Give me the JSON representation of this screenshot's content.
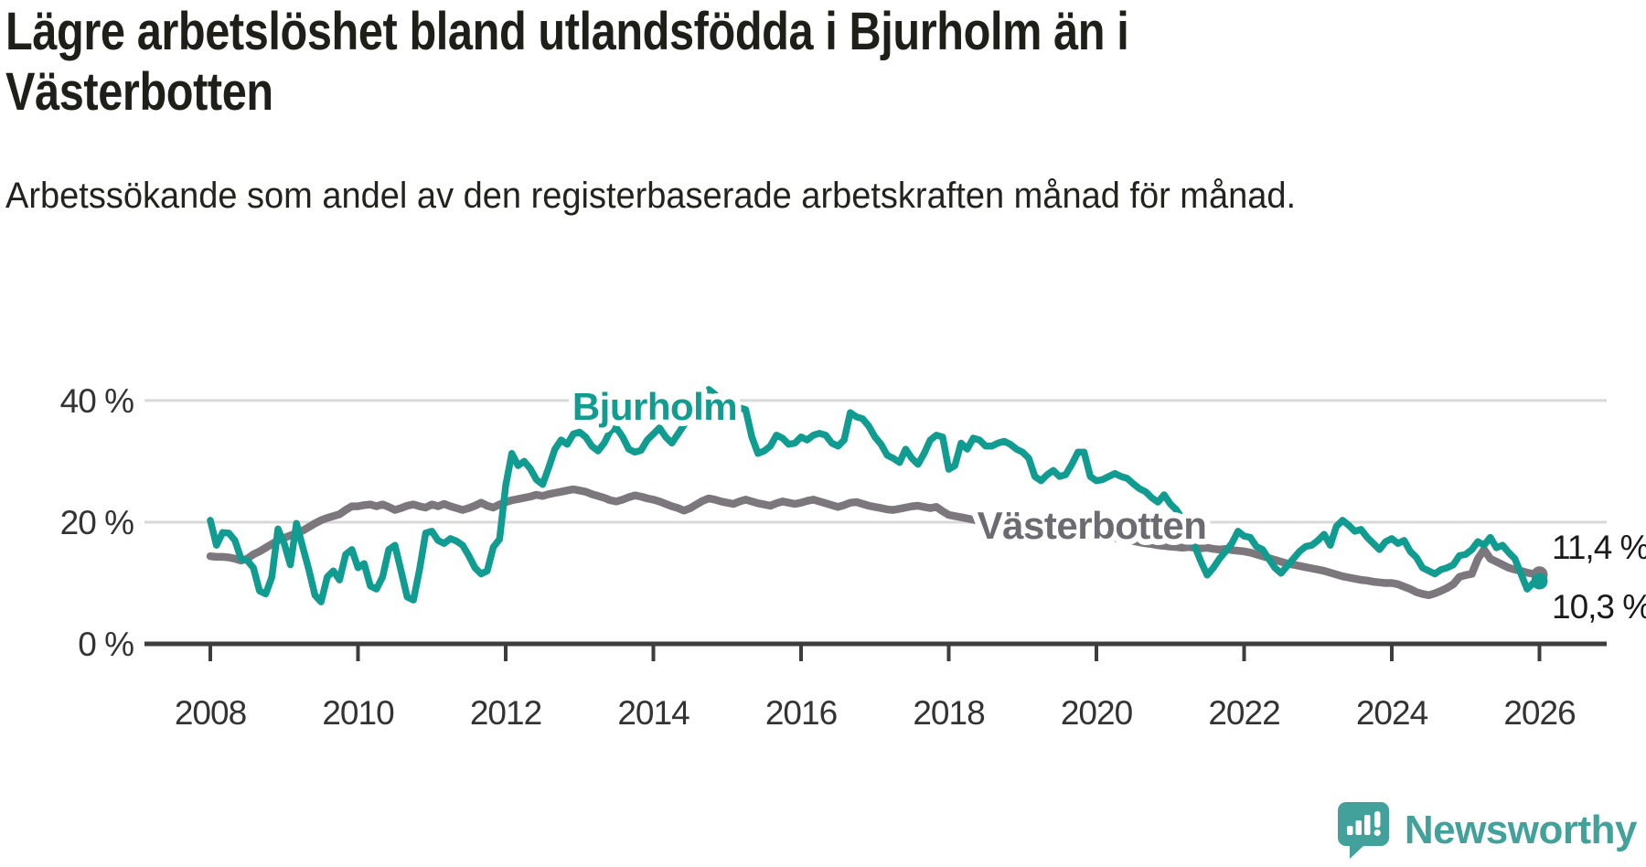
{
  "title": "Lägre arbetslöshet bland utlandsfödda i Bjurholm än i Västerbotten",
  "subtitle": "Arbetssökande som andel av den registerbaserade arbetskraften månad för månad.",
  "footer": {
    "brand": "Newsworthy"
  },
  "colors": {
    "accent_teal": "#109c90",
    "line_gray": "#7b777d",
    "label_gray": "#6c6b71",
    "axis": "#3d3d3d",
    "gridline": "#d9d9d9",
    "tick_text": "#333333",
    "value_label_text": "#1a1a1a",
    "brand_teal": "#42a19b"
  },
  "chart_data": {
    "type": "line",
    "title": "Lägre arbetslöshet bland utlandsfödda i Bjurholm än i Västerbotten",
    "subtitle": "Arbetssökande som andel av den registerbaserade arbetskraften månad för månad.",
    "x_unit": "year, monthly data points",
    "x_start": 2008.0,
    "x_step": 0.08333,
    "x_end": 2026.0,
    "x_ticks": [
      2008,
      2010,
      2012,
      2014,
      2016,
      2018,
      2020,
      2022,
      2024,
      2026
    ],
    "y_ticks": [
      {
        "value": 0,
        "label": "0 %"
      },
      {
        "value": 20,
        "label": "20 %"
      },
      {
        "value": 40,
        "label": "40 %"
      }
    ],
    "ylim": [
      0,
      43
    ],
    "grid": "horizontal",
    "legend_position": "inline-labels",
    "series": [
      {
        "name": "Västerbotten",
        "color": "#7b777d",
        "label_color": "#6c6b71",
        "end_value_label": "11,4 %",
        "end_value": 11.4,
        "values": [
          14.4,
          14.3,
          14.3,
          14.2,
          14.0,
          13.7,
          14.0,
          14.7,
          15.2,
          15.8,
          16.4,
          17.0,
          17.4,
          17.8,
          18.2,
          18.6,
          19.2,
          19.8,
          20.3,
          20.7,
          21.0,
          21.3,
          22.0,
          22.6,
          22.6,
          22.8,
          22.9,
          22.6,
          22.9,
          22.5,
          22.0,
          22.3,
          22.7,
          22.9,
          22.6,
          22.4,
          22.9,
          22.6,
          23.0,
          22.6,
          22.3,
          22.0,
          22.3,
          22.7,
          23.2,
          22.7,
          22.4,
          22.9,
          23.3,
          23.6,
          23.8,
          24.0,
          24.2,
          24.5,
          24.3,
          24.6,
          24.8,
          25.0,
          25.2,
          25.4,
          25.2,
          25.0,
          24.6,
          24.3,
          24.0,
          23.6,
          23.4,
          23.7,
          24.1,
          24.4,
          24.2,
          23.9,
          23.7,
          23.4,
          23.0,
          22.6,
          22.3,
          21.9,
          22.3,
          22.9,
          23.5,
          23.9,
          23.7,
          23.4,
          23.2,
          23.0,
          23.4,
          23.7,
          23.4,
          23.1,
          22.9,
          22.7,
          23.1,
          23.4,
          23.2,
          23.0,
          23.2,
          23.5,
          23.7,
          23.4,
          23.1,
          22.8,
          22.5,
          22.8,
          23.2,
          23.3,
          23.0,
          22.7,
          22.5,
          22.3,
          22.1,
          22.0,
          22.2,
          22.4,
          22.6,
          22.7,
          22.5,
          22.3,
          22.5,
          21.8,
          21.2,
          21.0,
          20.8,
          20.6,
          20.4,
          20.2,
          20.0,
          19.8,
          19.6,
          19.5,
          19.3,
          19.2,
          19.0,
          18.8,
          18.6,
          18.5,
          18.3,
          18.1,
          18.0,
          17.9,
          17.8,
          17.7,
          17.5,
          17.4,
          17.2,
          17.1,
          17.3,
          17.4,
          17.3,
          17.1,
          16.9,
          16.7,
          16.5,
          16.4,
          16.2,
          16.1,
          16.0,
          15.9,
          15.8,
          15.9,
          15.8,
          15.7,
          15.8,
          15.6,
          15.5,
          15.6,
          15.4,
          15.3,
          15.2,
          15.0,
          14.7,
          14.4,
          14.1,
          13.8,
          13.5,
          13.2,
          13.0,
          12.8,
          12.6,
          12.4,
          12.2,
          12.0,
          11.7,
          11.4,
          11.1,
          10.9,
          10.7,
          10.5,
          10.4,
          10.2,
          10.1,
          10.0,
          10.0,
          9.8,
          9.4,
          9.0,
          8.5,
          8.2,
          8.0,
          8.3,
          8.7,
          9.2,
          9.8,
          11.0,
          11.3,
          11.5,
          14.0,
          15.5,
          14.0,
          13.5,
          13.0,
          12.5,
          12.2,
          12.0,
          11.7,
          11.5,
          11.4
        ]
      },
      {
        "name": "Bjurholm",
        "color": "#109c90",
        "label_color": "#109c90",
        "end_value_label": "10,3 %",
        "end_value": 10.3,
        "values": [
          20.3,
          16.2,
          18.3,
          18.2,
          17.0,
          14.0,
          13.7,
          12.5,
          8.7,
          8.2,
          11.0,
          18.9,
          16.5,
          13.0,
          19.8,
          16.0,
          12.2,
          8.0,
          6.9,
          11.0,
          12.0,
          10.5,
          14.7,
          15.5,
          12.5,
          13.2,
          9.5,
          9.0,
          11.0,
          15.5,
          16.2,
          12.0,
          7.7,
          7.2,
          12.2,
          18.2,
          18.5,
          17.0,
          16.5,
          17.3,
          16.9,
          16.2,
          14.5,
          12.5,
          11.5,
          12.0,
          15.9,
          17.2,
          26.0,
          31.3,
          29.3,
          30.0,
          28.8,
          27.0,
          26.2,
          29.0,
          32.0,
          33.5,
          32.8,
          34.5,
          34.8,
          34.0,
          32.5,
          31.7,
          33.0,
          35.0,
          35.5,
          34.0,
          32.0,
          31.5,
          31.8,
          33.5,
          34.5,
          35.5,
          34.0,
          33.0,
          34.5,
          36.0,
          37.5,
          39.0,
          40.5,
          41.8,
          41.0,
          39.8,
          40.0,
          39.5,
          38.8,
          38.5,
          34.0,
          31.3,
          31.7,
          32.5,
          34.3,
          33.8,
          32.8,
          33.0,
          34.0,
          33.5,
          34.3,
          34.6,
          34.3,
          33.0,
          32.5,
          33.5,
          38.0,
          37.3,
          37.0,
          35.8,
          34.0,
          32.8,
          31.0,
          30.5,
          29.8,
          32.0,
          30.5,
          29.5,
          31.3,
          33.5,
          34.3,
          34.0,
          28.7,
          29.3,
          33.0,
          32.0,
          33.8,
          33.5,
          32.5,
          32.5,
          33.0,
          33.3,
          32.8,
          32.0,
          31.5,
          30.5,
          27.5,
          26.8,
          27.8,
          28.5,
          27.5,
          27.8,
          29.5,
          31.5,
          31.5,
          27.5,
          26.8,
          27.0,
          27.5,
          28.0,
          27.5,
          27.2,
          26.3,
          25.5,
          25.0,
          24.0,
          23.3,
          24.5,
          23.0,
          22.0,
          20.5,
          18.5,
          16.0,
          13.5,
          11.3,
          12.5,
          14.0,
          15.2,
          16.5,
          18.5,
          17.7,
          17.5,
          16.0,
          15.5,
          14.0,
          12.5,
          11.6,
          12.8,
          14.0,
          15.2,
          16.0,
          16.2,
          17.0,
          18.0,
          16.2,
          19.3,
          20.3,
          19.5,
          18.5,
          18.8,
          17.5,
          16.5,
          15.5,
          16.8,
          17.3,
          16.5,
          17.0,
          15.2,
          14.2,
          12.5,
          12.0,
          11.5,
          12.2,
          12.5,
          13.0,
          14.5,
          14.7,
          15.5,
          16.8,
          16.2,
          17.5,
          15.8,
          16.2,
          15.0,
          14.0,
          11.5,
          9.0,
          10.0,
          10.3
        ]
      }
    ]
  }
}
